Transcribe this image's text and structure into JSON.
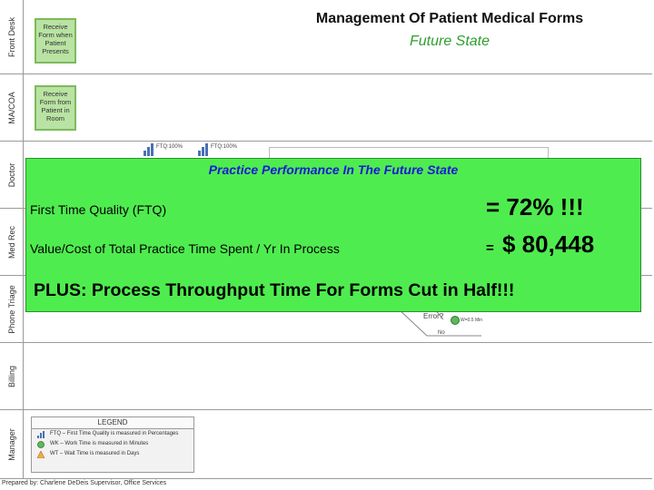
{
  "title": "Management Of Patient Medical Forms",
  "subtitle": "Future State",
  "lanes": [
    {
      "label": "Front Desk"
    },
    {
      "label": "MA/COA"
    },
    {
      "label": "Doctor"
    },
    {
      "label": "Med Rec"
    },
    {
      "label": "Phone Triage"
    },
    {
      "label": "Billing"
    },
    {
      "label": "Manager"
    }
  ],
  "process_boxes": [
    {
      "text": "Receive Form when Patient Presents"
    },
    {
      "text": "Receive Form from Patient in Room"
    }
  ],
  "background_labels": {
    "ftq_1": "FTQ:100%",
    "ftq_2": "FTQ:100%",
    "decision": "Error?",
    "wt": "W=0.5 Min",
    "no": "No"
  },
  "overlay": {
    "title": "Practice Performance In The Future State",
    "ftq_label": "First Time Quality (FTQ)",
    "ftq_value": "= 72% !!!",
    "cost_label": "Value/Cost of Total Practice Time Spent / Yr In Process",
    "cost_eq": "=",
    "cost_value": "$ 80,448",
    "plus": "PLUS: Process Throughput Time For Forms Cut in Half!!!"
  },
  "legend": {
    "title": "LEGEND",
    "items": [
      {
        "icon": "ftq-icon",
        "text": "FTQ – First Time Quality is measured in Percentages"
      },
      {
        "icon": "work-time-icon",
        "text": "WK – Work Time is measured in Minutes"
      },
      {
        "icon": "wait-time-icon",
        "text": "WT – Wait Time is measured in Days"
      }
    ]
  },
  "footer": "Prepared by: Charlene DeDeis Supervisor, Office Services",
  "colors": {
    "overlay_bg": "#4fec4f",
    "overlay_title": "#1a1ad6",
    "subtitle": "#2e9e2e",
    "process_box": "#b9e3a3"
  }
}
